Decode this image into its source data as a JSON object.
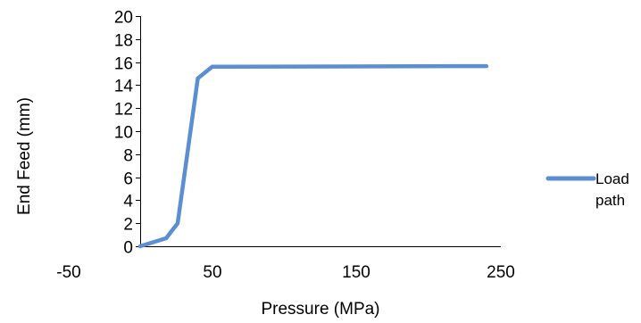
{
  "chart_data": {
    "type": "line",
    "title": "",
    "xlabel": "Pressure (MPa)",
    "ylabel": "End Feed (mm)",
    "xlim": [
      -50,
      250
    ],
    "ylim": [
      0,
      20
    ],
    "x_ticks": [
      -50,
      50,
      150,
      250
    ],
    "y_ticks": [
      0,
      2,
      4,
      6,
      8,
      10,
      12,
      14,
      16,
      18,
      20
    ],
    "x_tick_labels": [
      "-50",
      "50",
      "150",
      "250"
    ],
    "y_tick_labels": [
      "0",
      "2",
      "4",
      "6",
      "8",
      "10",
      "12",
      "14",
      "16",
      "18",
      "20"
    ],
    "grid": false,
    "legend_position": "right",
    "series": [
      {
        "name": "Load path",
        "legend_lines": [
          "Load",
          "path"
        ],
        "color": "#5B8ED2",
        "points": [
          {
            "x": 0,
            "y": 0
          },
          {
            "x": 18,
            "y": 0.7
          },
          {
            "x": 26,
            "y": 2
          },
          {
            "x": 40,
            "y": 14.6
          },
          {
            "x": 50,
            "y": 15.6
          },
          {
            "x": 240,
            "y": 15.65
          }
        ]
      }
    ]
  }
}
